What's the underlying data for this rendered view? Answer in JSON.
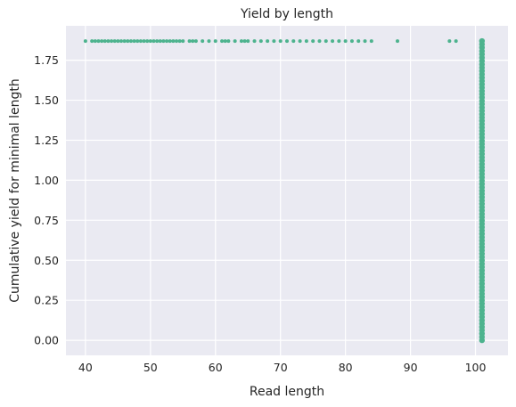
{
  "chart_data": {
    "type": "scatter",
    "title": "Yield by length",
    "xlabel": "Read length",
    "ylabel": "Cumulative yield for minimal length",
    "xlim": [
      37,
      105
    ],
    "ylim": [
      -0.094,
      1.965
    ],
    "xticks": [
      40,
      50,
      60,
      70,
      80,
      90,
      100
    ],
    "yticks": [
      0.0,
      0.25,
      0.5,
      0.75,
      1.0,
      1.25,
      1.5,
      1.75
    ],
    "xtick_labels": [
      "40",
      "50",
      "60",
      "70",
      "80",
      "90",
      "100"
    ],
    "ytick_labels": [
      "0.00",
      "0.25",
      "0.50",
      "0.75",
      "1.00",
      "1.25",
      "1.50",
      "1.75"
    ],
    "grid": true,
    "background_color": "#eaeaf2",
    "grid_color": "#ffffff",
    "marker_color": "#4db38e",
    "series": [
      {
        "points_top": {
          "y": 1.87,
          "x": [
            40,
            41,
            41.5,
            42,
            42.5,
            43,
            43.5,
            44,
            44.5,
            45,
            45.5,
            46,
            46.5,
            47,
            47.5,
            48,
            48.5,
            49,
            49.5,
            50,
            50.5,
            51,
            51.5,
            52,
            52.5,
            53,
            53.5,
            54,
            54.5,
            55,
            56,
            56.5,
            57,
            58,
            59,
            60,
            61,
            61.5,
            62,
            63,
            64,
            64.5,
            65,
            66,
            67,
            68,
            69,
            70,
            71,
            72,
            73,
            74,
            75,
            76,
            77,
            78,
            79,
            80,
            81,
            82,
            83,
            84,
            88,
            96,
            97,
            101
          ]
        },
        "column_x": 101,
        "column_y_range": [
          0.0,
          1.87
        ]
      }
    ]
  }
}
